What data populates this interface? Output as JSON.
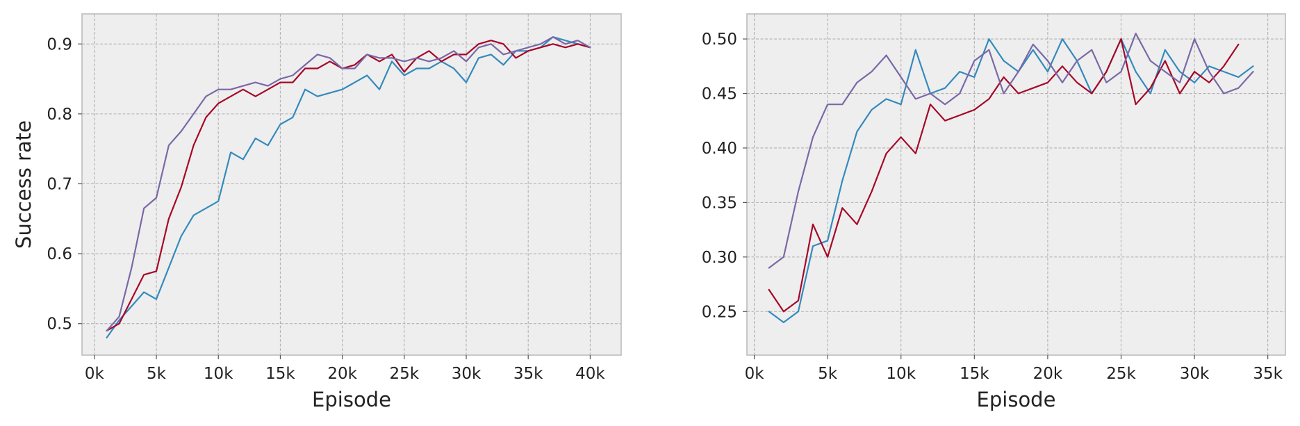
{
  "chart_data": [
    {
      "type": "line",
      "title": "",
      "xlabel": "Episode",
      "ylabel": "Success rate",
      "xlim": [
        -1000,
        42500
      ],
      "ylim": [
        0.455,
        0.943
      ],
      "xticks": [
        0,
        5000,
        10000,
        15000,
        20000,
        25000,
        30000,
        35000,
        40000
      ],
      "xticklabels": [
        "0k",
        "5k",
        "10k",
        "15k",
        "20k",
        "25k",
        "30k",
        "35k",
        "40k"
      ],
      "yticks": [
        0.5,
        0.6,
        0.7,
        0.8,
        0.9
      ],
      "yticklabels": [
        "0.5",
        "0.6",
        "0.7",
        "0.8",
        "0.9"
      ],
      "grid": true,
      "legend": false,
      "series": [
        {
          "color": "#348ABD",
          "x": [
            1000,
            2000,
            3000,
            4000,
            5000,
            6000,
            7000,
            8000,
            9000,
            10000,
            11000,
            12000,
            13000,
            14000,
            15000,
            16000,
            17000,
            18000,
            19000,
            20000,
            21000,
            22000,
            23000,
            24000,
            25000,
            26000,
            27000,
            28000,
            29000,
            30000,
            31000,
            32000,
            33000,
            34000,
            35000,
            36000,
            37000,
            38000,
            39000,
            40000
          ],
          "y": [
            0.48,
            0.505,
            0.525,
            0.545,
            0.535,
            0.58,
            0.625,
            0.655,
            0.665,
            0.675,
            0.745,
            0.735,
            0.765,
            0.755,
            0.785,
            0.795,
            0.835,
            0.825,
            0.83,
            0.835,
            0.845,
            0.855,
            0.835,
            0.875,
            0.855,
            0.865,
            0.865,
            0.875,
            0.865,
            0.845,
            0.88,
            0.885,
            0.87,
            0.89,
            0.89,
            0.895,
            0.91,
            0.905,
            0.9,
            0.895
          ]
        },
        {
          "color": "#A60628",
          "x": [
            1000,
            2000,
            3000,
            4000,
            5000,
            6000,
            7000,
            8000,
            9000,
            10000,
            11000,
            12000,
            13000,
            14000,
            15000,
            16000,
            17000,
            18000,
            19000,
            20000,
            21000,
            22000,
            23000,
            24000,
            25000,
            26000,
            27000,
            28000,
            29000,
            30000,
            31000,
            32000,
            33000,
            34000,
            35000,
            36000,
            37000,
            38000,
            39000,
            40000
          ],
          "y": [
            0.49,
            0.5,
            0.535,
            0.57,
            0.575,
            0.65,
            0.695,
            0.755,
            0.795,
            0.815,
            0.825,
            0.835,
            0.825,
            0.835,
            0.845,
            0.845,
            0.865,
            0.865,
            0.875,
            0.865,
            0.87,
            0.885,
            0.875,
            0.885,
            0.86,
            0.88,
            0.89,
            0.875,
            0.885,
            0.885,
            0.9,
            0.905,
            0.9,
            0.88,
            0.89,
            0.895,
            0.9,
            0.895,
            0.9,
            0.895
          ]
        },
        {
          "color": "#7A68A6",
          "x": [
            1000,
            2000,
            3000,
            4000,
            5000,
            6000,
            7000,
            8000,
            9000,
            10000,
            11000,
            12000,
            13000,
            14000,
            15000,
            16000,
            17000,
            18000,
            19000,
            20000,
            21000,
            22000,
            23000,
            24000,
            25000,
            26000,
            27000,
            28000,
            29000,
            30000,
            31000,
            32000,
            33000,
            34000,
            35000,
            36000,
            37000,
            38000,
            39000,
            40000
          ],
          "y": [
            0.49,
            0.51,
            0.58,
            0.665,
            0.68,
            0.755,
            0.775,
            0.8,
            0.825,
            0.835,
            0.835,
            0.84,
            0.845,
            0.84,
            0.85,
            0.855,
            0.87,
            0.885,
            0.88,
            0.865,
            0.865,
            0.885,
            0.88,
            0.88,
            0.875,
            0.88,
            0.875,
            0.88,
            0.89,
            0.875,
            0.895,
            0.9,
            0.885,
            0.89,
            0.895,
            0.9,
            0.91,
            0.9,
            0.905,
            0.895
          ]
        }
      ]
    },
    {
      "type": "line",
      "title": "",
      "xlabel": "Episode",
      "ylabel": "",
      "xlim": [
        -500,
        36200
      ],
      "ylim": [
        0.21,
        0.523
      ],
      "xticks": [
        0,
        5000,
        10000,
        15000,
        20000,
        25000,
        30000,
        35000
      ],
      "xticklabels": [
        "0k",
        "5k",
        "10k",
        "15k",
        "20k",
        "25k",
        "30k",
        "35k"
      ],
      "yticks": [
        0.25,
        0.3,
        0.35,
        0.4,
        0.45,
        0.5
      ],
      "yticklabels": [
        "0.25",
        "0.30",
        "0.35",
        "0.40",
        "0.45",
        "0.50"
      ],
      "grid": true,
      "legend": false,
      "series": [
        {
          "color": "#348ABD",
          "x": [
            1000,
            2000,
            3000,
            4000,
            5000,
            6000,
            7000,
            8000,
            9000,
            10000,
            11000,
            12000,
            13000,
            14000,
            15000,
            16000,
            17000,
            18000,
            19000,
            20000,
            21000,
            22000,
            23000,
            24000,
            25000,
            26000,
            27000,
            28000,
            29000,
            30000,
            31000,
            32000,
            33000,
            34000
          ],
          "y": [
            0.25,
            0.24,
            0.25,
            0.31,
            0.315,
            0.37,
            0.415,
            0.435,
            0.445,
            0.44,
            0.49,
            0.45,
            0.455,
            0.47,
            0.465,
            0.5,
            0.48,
            0.47,
            0.49,
            0.47,
            0.5,
            0.48,
            0.45,
            0.47,
            0.5,
            0.47,
            0.45,
            0.49,
            0.47,
            0.46,
            0.475,
            0.47,
            0.465,
            0.475
          ]
        },
        {
          "color": "#A60628",
          "x": [
            1000,
            2000,
            3000,
            4000,
            5000,
            6000,
            7000,
            8000,
            9000,
            10000,
            11000,
            12000,
            13000,
            14000,
            15000,
            16000,
            17000,
            18000,
            19000,
            20000,
            21000,
            22000,
            23000,
            24000,
            25000,
            26000,
            27000,
            28000,
            29000,
            30000,
            31000,
            32000,
            33000
          ],
          "y": [
            0.27,
            0.25,
            0.26,
            0.33,
            0.3,
            0.345,
            0.33,
            0.36,
            0.395,
            0.41,
            0.395,
            0.44,
            0.425,
            0.43,
            0.435,
            0.445,
            0.465,
            0.45,
            0.455,
            0.46,
            0.475,
            0.46,
            0.45,
            0.47,
            0.5,
            0.44,
            0.455,
            0.48,
            0.45,
            0.47,
            0.46,
            0.475,
            0.495
          ]
        },
        {
          "color": "#7A68A6",
          "x": [
            1000,
            2000,
            3000,
            4000,
            5000,
            6000,
            7000,
            8000,
            9000,
            10000,
            11000,
            12000,
            13000,
            14000,
            15000,
            16000,
            17000,
            18000,
            19000,
            20000,
            21000,
            22000,
            23000,
            24000,
            25000,
            26000,
            27000,
            28000,
            29000,
            30000,
            31000,
            32000,
            33000,
            34000
          ],
          "y": [
            0.29,
            0.3,
            0.36,
            0.41,
            0.44,
            0.44,
            0.46,
            0.47,
            0.485,
            0.465,
            0.445,
            0.45,
            0.44,
            0.45,
            0.48,
            0.49,
            0.45,
            0.47,
            0.495,
            0.48,
            0.46,
            0.48,
            0.49,
            0.46,
            0.47,
            0.505,
            0.48,
            0.47,
            0.46,
            0.5,
            0.47,
            0.45,
            0.455,
            0.47
          ]
        }
      ]
    }
  ]
}
